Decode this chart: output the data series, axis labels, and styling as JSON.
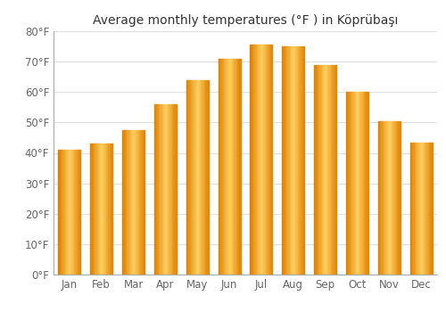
{
  "title": "Average monthly temperatures (°F ) in Köprübaşı",
  "months": [
    "Jan",
    "Feb",
    "Mar",
    "Apr",
    "May",
    "Jun",
    "Jul",
    "Aug",
    "Sep",
    "Oct",
    "Nov",
    "Dec"
  ],
  "values": [
    41,
    43,
    47.5,
    56,
    64,
    71,
    75.5,
    75,
    69,
    60,
    50.5,
    43.5
  ],
  "bar_color_main": "#FFA500",
  "bar_color_light": "#FFD060",
  "bar_color_dark": "#E08000",
  "ylim": [
    0,
    80
  ],
  "yticks": [
    0,
    10,
    20,
    30,
    40,
    50,
    60,
    70,
    80
  ],
  "ytick_labels": [
    "0°F",
    "10°F",
    "20°F",
    "30°F",
    "40°F",
    "50°F",
    "60°F",
    "70°F",
    "80°F"
  ],
  "background_color": "#ffffff",
  "grid_color": "#e0e0e0",
  "title_fontsize": 10,
  "tick_fontsize": 8.5
}
